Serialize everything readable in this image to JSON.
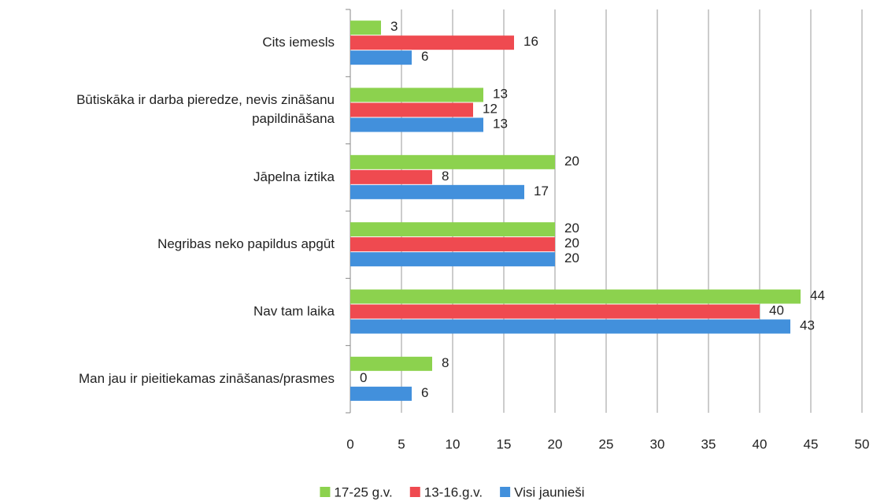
{
  "chart_data": {
    "type": "barh",
    "categories": [
      "Cits iemesls",
      "Būtiskāka ir darba pieredze, nevis zināšanu papildināšana",
      "Jāpelna iztika",
      "Negribas neko papildus apgūt",
      "Nav tam laika",
      "Man jau ir pieitiekamas zināšanas/prasmes"
    ],
    "series": [
      {
        "name": "17-25 g.v.",
        "color": "#8cd24e",
        "values": [
          3,
          13,
          20,
          20,
          44,
          8
        ]
      },
      {
        "name": "13-16.g.v.",
        "color": "#ef4a50",
        "values": [
          16,
          12,
          8,
          20,
          40,
          0
        ]
      },
      {
        "name": "Visi jaunieši",
        "color": "#4290dc",
        "values": [
          6,
          13,
          17,
          20,
          43,
          6
        ]
      }
    ],
    "xlim": [
      0,
      50
    ],
    "xticks": [
      0,
      5,
      10,
      15,
      20,
      25,
      30,
      35,
      40,
      45,
      50
    ],
    "grid": true,
    "legend": "bottom"
  }
}
